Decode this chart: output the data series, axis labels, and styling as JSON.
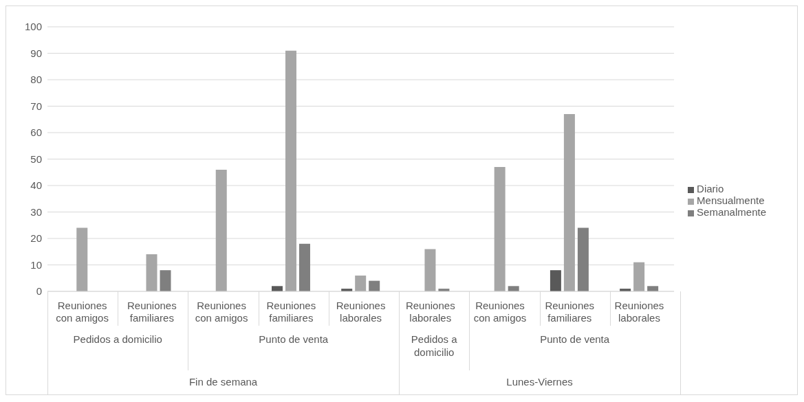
{
  "chart_data": {
    "type": "bar",
    "categories": [
      "Reuniones con amigos",
      "Reuniones familiares",
      "Reuniones con amigos",
      "Reuniones familiares",
      "Reuniones laborales",
      "Reuniones laborales",
      "Reuniones con amigos",
      "Reuniones familiares",
      "Reuniones laborales"
    ],
    "series": [
      {
        "name": "Diario",
        "color": "#595959",
        "values": [
          null,
          null,
          null,
          2,
          1,
          null,
          null,
          8,
          1
        ]
      },
      {
        "name": "Mensualmente",
        "color": "#a6a6a6",
        "values": [
          24,
          14,
          46,
          91,
          6,
          16,
          47,
          67,
          11
        ]
      },
      {
        "name": "Semanalmente",
        "color": "#7f7f7f",
        "values": [
          null,
          8,
          null,
          18,
          4,
          1,
          2,
          24,
          2
        ]
      }
    ],
    "annotations": [
      "Pedidos a domicilio",
      "Punto de venta",
      "Pedidos a domicilio",
      "Punto de venta",
      "Fin de semana",
      "Lunes-Viernes"
    ],
    "ylim": [
      0,
      100
    ],
    "yticks": [
      0,
      10,
      20,
      30,
      40,
      50,
      60,
      70,
      80,
      90,
      100
    ],
    "grid": "y",
    "legend": "right"
  }
}
